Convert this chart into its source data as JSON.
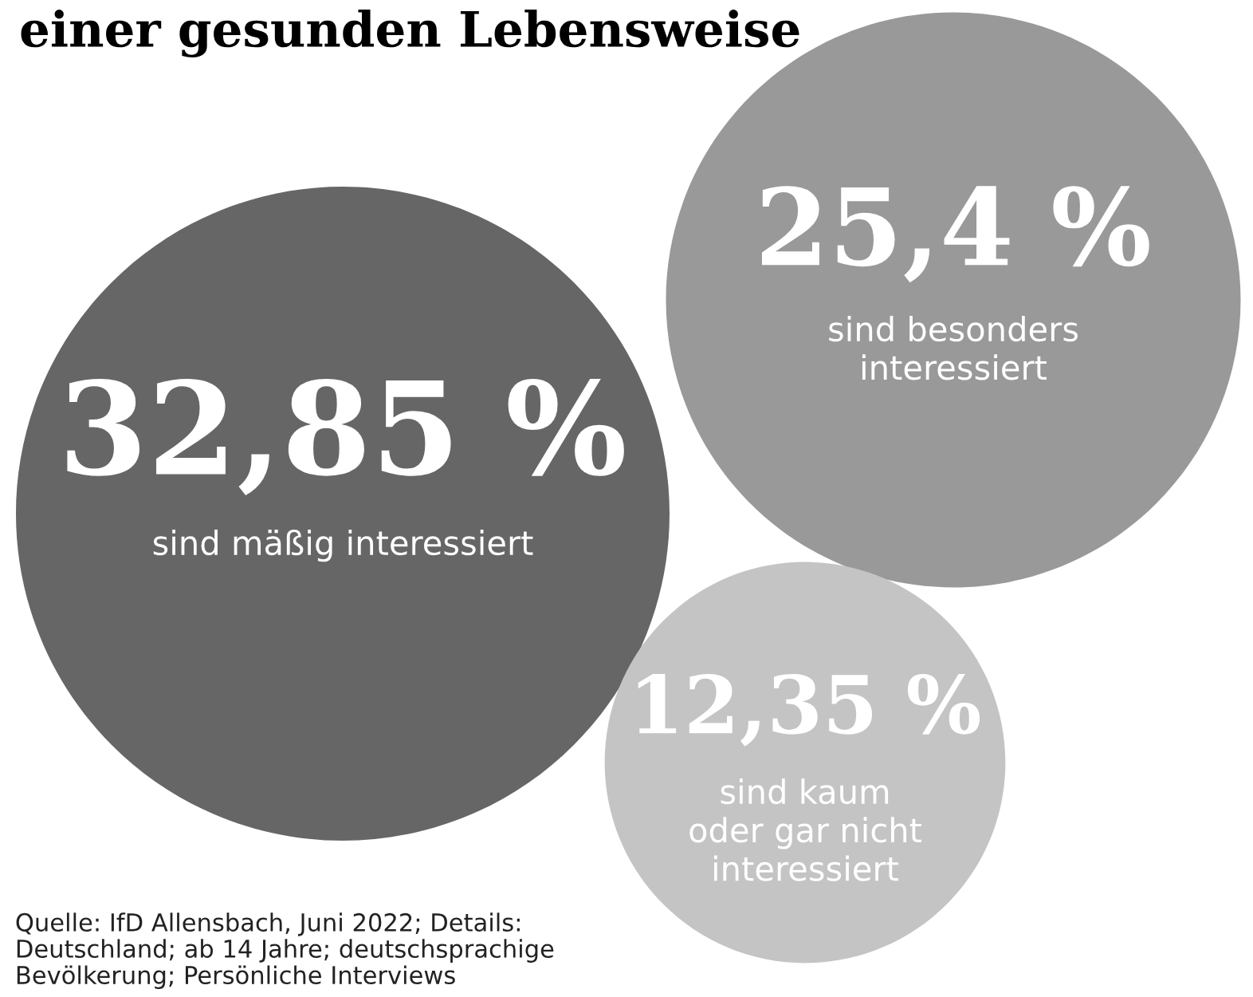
{
  "chart_data": {
    "type": "other",
    "title": "einer gesunden Lebensweise",
    "categories": [
      "sind mäßig interessiert",
      "sind besonders\ninteressiert",
      "sind kaum\noder gar nicht\ninteressiert"
    ],
    "values": [
      32.85,
      25.4,
      12.35
    ],
    "value_labels": [
      "32,85 %",
      "25,4 %",
      "12,35 %"
    ],
    "colors": [
      "#666666",
      "#999999",
      "#c4c4c4"
    ],
    "annotations": [
      "Quelle: IfD Allensbach, Juni 2022; Details:\nDeutschland; ab 14 Jahre; deutschsprachige\nBevölkerung; Persönliche Interviews"
    ]
  }
}
